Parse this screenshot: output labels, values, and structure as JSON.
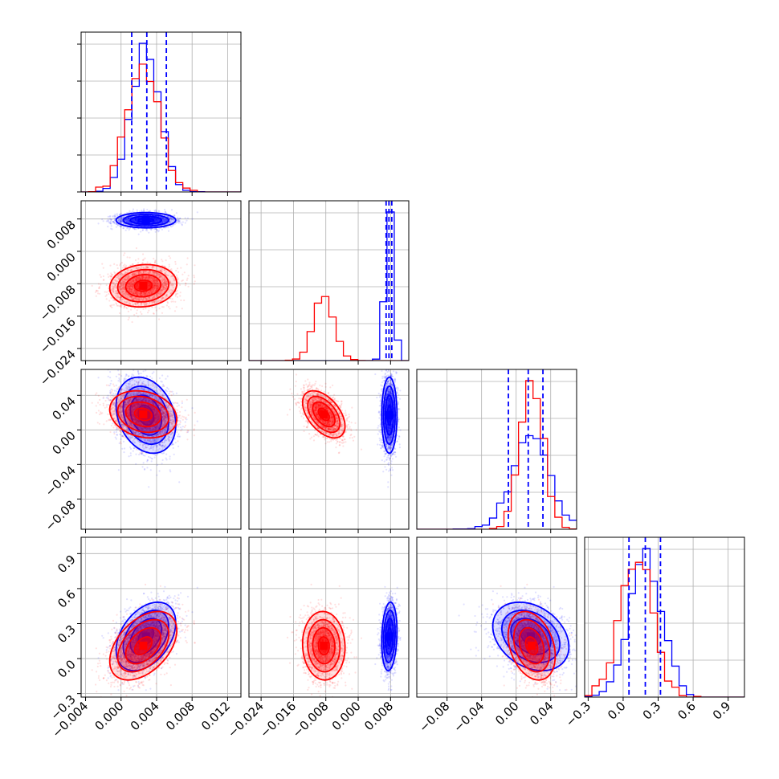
{
  "chart_data": {
    "type": "corner",
    "title": "",
    "series": [
      {
        "name": "",
        "color": "#0000ff"
      },
      {
        "name": "",
        "color": "#ff0000"
      }
    ],
    "parameters": [
      {
        "range": [
          -0.0045,
          0.0135
        ],
        "ticks": [
          -0.004,
          0.0,
          0.004,
          0.008,
          0.012
        ],
        "tick_labels": [
          "−0.004",
          "0.000",
          "0.004",
          "0.008",
          "0.012"
        ]
      },
      {
        "range": [
          -0.027,
          0.0125
        ],
        "ticks": [
          -0.024,
          -0.016,
          -0.008,
          0.0,
          0.008
        ],
        "tick_labels": [
          "−0.024",
          "−0.016",
          "−0.008",
          "0.000",
          "0.008"
        ]
      },
      {
        "range": [
          -0.115,
          0.07
        ],
        "ticks": [
          -0.08,
          -0.04,
          0.0,
          0.04
        ],
        "tick_labels": [
          "−0.08",
          "−0.04",
          "0.00",
          "0.04"
        ]
      },
      {
        "range": [
          -0.33,
          1.04
        ],
        "ticks": [
          -0.3,
          0.0,
          0.3,
          0.6,
          0.9
        ],
        "tick_labels": [
          "−0.3",
          "0.0",
          "0.3",
          "0.6",
          "0.9"
        ]
      }
    ],
    "blue": {
      "means": [
        0.0028,
        0.0077,
        0.017,
        0.19
      ],
      "stds": [
        0.0016,
        0.0009,
        0.021,
        0.14
      ],
      "quantiles": [
        [
          0.0012,
          0.0029,
          0.0051
        ],
        [
          0.0069,
          0.0076,
          0.0083
        ],
        [
          -0.009,
          0.014,
          0.031
        ],
        [
          0.05,
          0.19,
          0.32
        ]
      ],
      "correlations": [
        [
          1,
          0,
          -0.25,
          0.4
        ],
        [
          0,
          1,
          0,
          0.15
        ],
        [
          -0.25,
          0,
          1,
          -0.3
        ],
        [
          0.4,
          0.15,
          -0.3,
          1
        ]
      ]
    },
    "red": {
      "means": [
        0.0025,
        -0.0085,
        0.018,
        0.11
      ],
      "stds": [
        0.0018,
        0.0025,
        0.013,
        0.14
      ],
      "correlations": [
        [
          1,
          0.1,
          -0.2,
          0.45
        ],
        [
          0.1,
          1,
          -0.5,
          -0.05
        ],
        [
          -0.2,
          -0.5,
          1,
          -0.3
        ],
        [
          0.45,
          -0.05,
          -0.3,
          1
        ]
      ]
    },
    "grid": true,
    "xlabel": "",
    "ylabel": ""
  }
}
